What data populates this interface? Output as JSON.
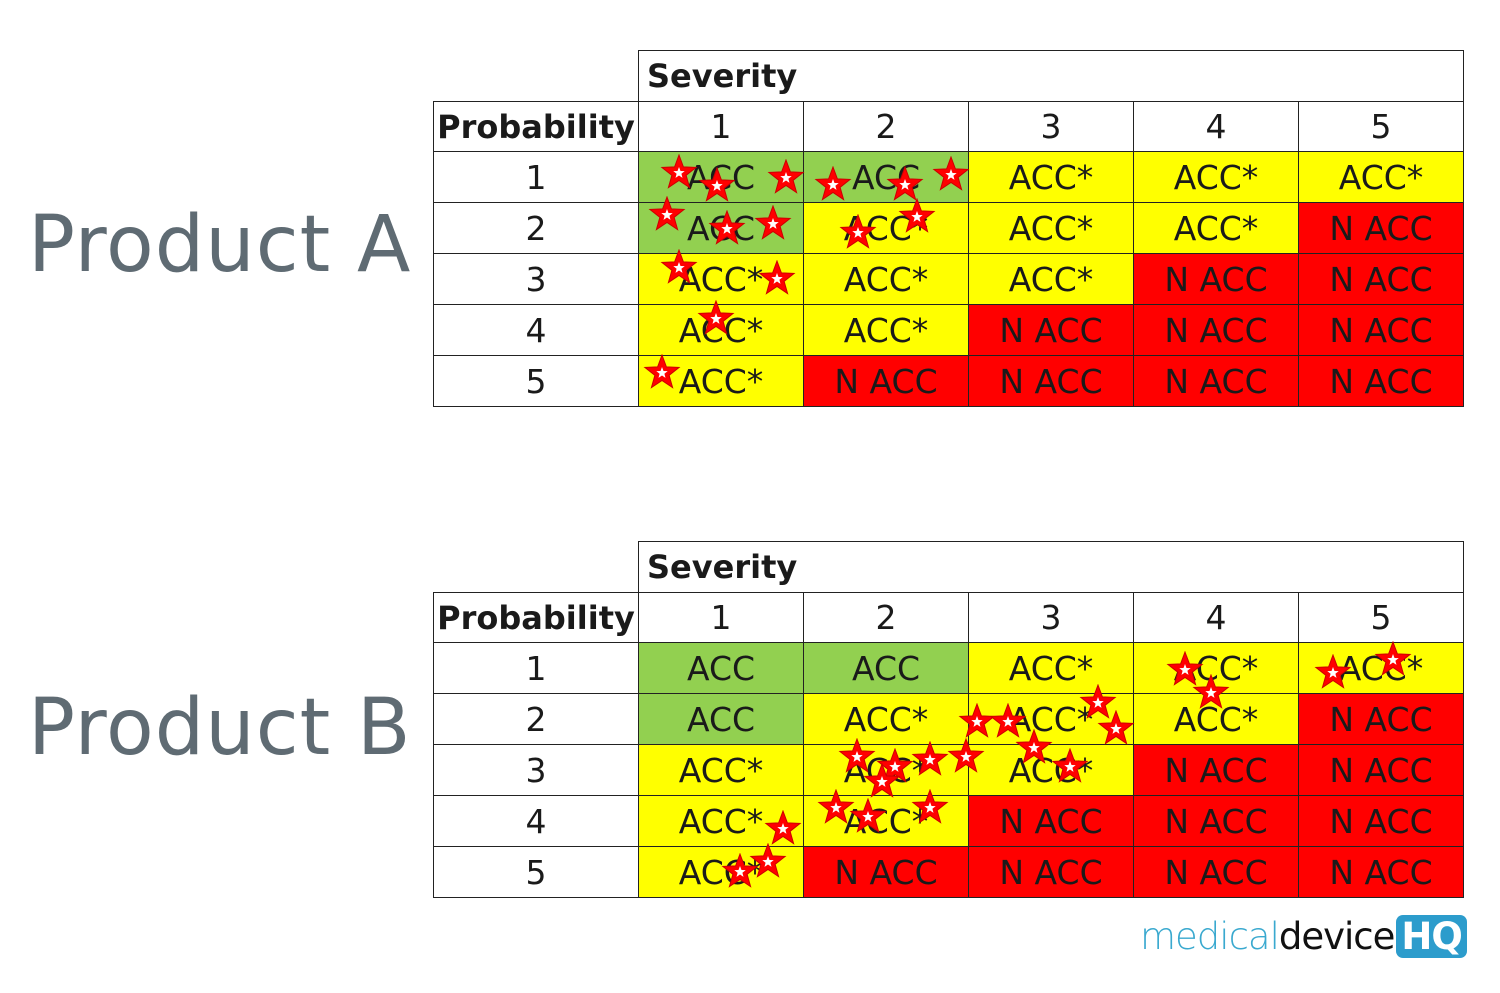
{
  "colors": {
    "ACC": "#92d050",
    "ACC*": "#ffff00",
    "N ACC": "#ff0000",
    "star": "#ff0000"
  },
  "severity_label": "Severity",
  "probability_label": "Probability",
  "severity_levels": [
    "1",
    "2",
    "3",
    "4",
    "5"
  ],
  "probability_levels": [
    "1",
    "2",
    "3",
    "4",
    "5"
  ],
  "products": [
    {
      "name": "Product A",
      "grid": [
        [
          "ACC",
          "ACC",
          "ACC*",
          "ACC*",
          "ACC*"
        ],
        [
          "ACC",
          "ACC*",
          "ACC*",
          "ACC*",
          "N ACC"
        ],
        [
          "ACC*",
          "ACC*",
          "ACC*",
          "N ACC",
          "N ACC"
        ],
        [
          "ACC*",
          "ACC*",
          "N ACC",
          "N ACC",
          "N ACC"
        ],
        [
          "ACC*",
          "N ACC",
          "N ACC",
          "N ACC",
          "N ACC"
        ]
      ],
      "risk_stars": [
        {
          "probability": 1,
          "severity": 1,
          "count": 3
        },
        {
          "probability": 1,
          "severity": 2,
          "count": 3
        },
        {
          "probability": 2,
          "severity": 1,
          "count": 3
        },
        {
          "probability": 2,
          "severity": 2,
          "count": 2
        },
        {
          "probability": 3,
          "severity": 1,
          "count": 2
        },
        {
          "probability": 4,
          "severity": 1,
          "count": 1
        },
        {
          "probability": 5,
          "severity": 1,
          "count": 1
        }
      ]
    },
    {
      "name": "Product B",
      "grid": [
        [
          "ACC",
          "ACC",
          "ACC*",
          "ACC*",
          "ACC*"
        ],
        [
          "ACC",
          "ACC*",
          "ACC*",
          "ACC*",
          "N ACC"
        ],
        [
          "ACC*",
          "ACC*",
          "ACC*",
          "N ACC",
          "N ACC"
        ],
        [
          "ACC*",
          "ACC*",
          "N ACC",
          "N ACC",
          "N ACC"
        ],
        [
          "ACC*",
          "N ACC",
          "N ACC",
          "N ACC",
          "N ACC"
        ]
      ],
      "risk_stars": [
        {
          "probability": 1,
          "severity": 4,
          "count": 2
        },
        {
          "probability": 1,
          "severity": 5,
          "count": 2
        },
        {
          "probability": 2,
          "severity": 3,
          "count": 4
        },
        {
          "probability": 3,
          "severity": 2,
          "count": 5
        },
        {
          "probability": 3,
          "severity": 3,
          "count": 2
        },
        {
          "probability": 4,
          "severity": 1,
          "count": 1
        },
        {
          "probability": 4,
          "severity": 2,
          "count": 3
        },
        {
          "probability": 5,
          "severity": 1,
          "count": 2
        }
      ]
    }
  ],
  "logo": {
    "part1": "medical",
    "part2": "device",
    "part3": "HQ"
  }
}
